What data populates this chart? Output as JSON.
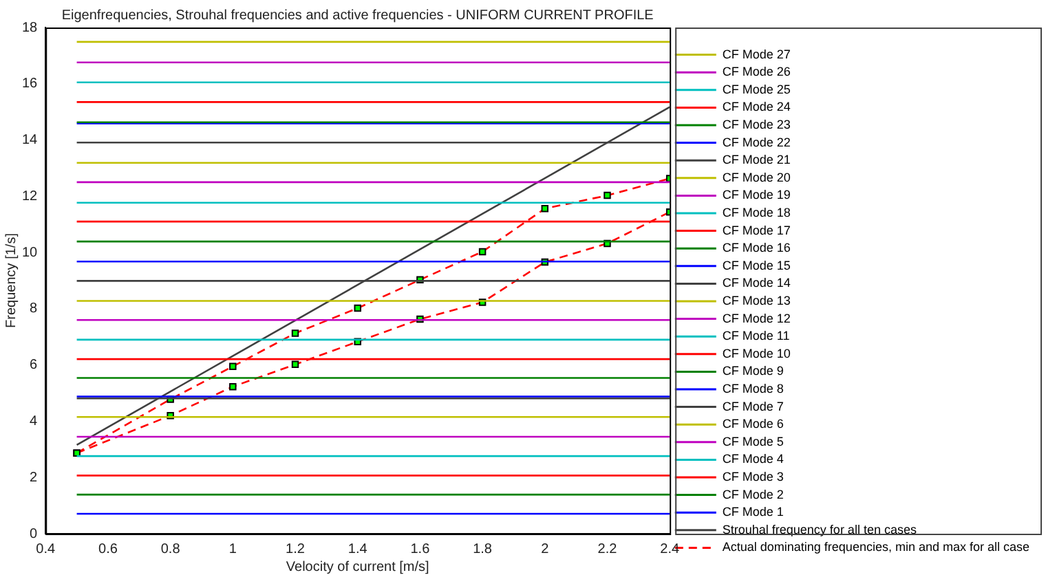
{
  "chart_data": {
    "type": "line",
    "title": "Eigenfrequencies, Strouhal frequencies and active frequencies - UNIFORM CURRENT PROFILE",
    "xlabel": "Velocity of current [m/s]",
    "ylabel": "Frequency [1/s]",
    "xlim": [
      0.4,
      2.4
    ],
    "ylim": [
      0,
      18
    ],
    "xticks": [
      0.4,
      0.6,
      0.8,
      1,
      1.2,
      1.4,
      1.6,
      1.8,
      2,
      2.2,
      2.4
    ],
    "yticks": [
      0,
      2,
      4,
      6,
      8,
      10,
      12,
      14,
      16,
      18
    ],
    "legend": "right",
    "grid": false,
    "marker": "none",
    "line_style": "solid",
    "series": [
      {
        "name": "CF Mode 27",
        "color": "#bfbf00",
        "x": [
          0.5,
          2.4
        ],
        "values": [
          17.49,
          17.49
        ]
      },
      {
        "name": "CF Mode 26",
        "color": "#bf00bf",
        "x": [
          0.5,
          2.4
        ],
        "values": [
          16.76,
          16.76
        ]
      },
      {
        "name": "CF Mode 25",
        "color": "#00bfbf",
        "x": [
          0.5,
          2.4
        ],
        "values": [
          16.05,
          16.05
        ]
      },
      {
        "name": "CF Mode 24",
        "color": "#ff0000",
        "x": [
          0.5,
          2.4
        ],
        "values": [
          15.35,
          15.35
        ]
      },
      {
        "name": "CF Mode 23",
        "color": "#008000",
        "x": [
          0.5,
          2.4
        ],
        "values": [
          14.63,
          14.63
        ]
      },
      {
        "name": "CF Mode 22",
        "color": "#0000ff",
        "x": [
          0.5,
          2.4
        ],
        "values": [
          14.59,
          14.59
        ]
      },
      {
        "name": "CF Mode 21",
        "color": "#404040",
        "x": [
          0.5,
          2.4
        ],
        "values": [
          13.91,
          13.91
        ]
      },
      {
        "name": "CF Mode 20",
        "color": "#bfbf00",
        "x": [
          0.5,
          2.4
        ],
        "values": [
          13.19,
          13.19
        ]
      },
      {
        "name": "CF Mode 19",
        "color": "#bf00bf",
        "x": [
          0.5,
          2.4
        ],
        "values": [
          12.5,
          12.5
        ]
      },
      {
        "name": "CF Mode 18",
        "color": "#00bfbf",
        "x": [
          0.5,
          2.4
        ],
        "values": [
          11.77,
          11.77
        ]
      },
      {
        "name": "CF Mode 17",
        "color": "#ff0000",
        "x": [
          0.5,
          2.4
        ],
        "values": [
          11.1,
          11.1
        ]
      },
      {
        "name": "CF Mode 16",
        "color": "#008000",
        "x": [
          0.5,
          2.4
        ],
        "values": [
          10.39,
          10.39
        ]
      },
      {
        "name": "CF Mode 15",
        "color": "#0000ff",
        "x": [
          0.5,
          2.4
        ],
        "values": [
          9.68,
          9.68
        ]
      },
      {
        "name": "CF Mode 14",
        "color": "#404040",
        "x": [
          0.5,
          2.4
        ],
        "values": [
          8.99,
          8.99
        ]
      },
      {
        "name": "CF Mode 13",
        "color": "#bfbf00",
        "x": [
          0.5,
          2.4
        ],
        "values": [
          8.28,
          8.28
        ]
      },
      {
        "name": "CF Mode 12",
        "color": "#bf00bf",
        "x": [
          0.5,
          2.4
        ],
        "values": [
          7.6,
          7.6
        ]
      },
      {
        "name": "CF Mode 11",
        "color": "#00bfbf",
        "x": [
          0.5,
          2.4
        ],
        "values": [
          6.9,
          6.9
        ]
      },
      {
        "name": "CF Mode 10",
        "color": "#ff0000",
        "x": [
          0.5,
          2.4
        ],
        "values": [
          6.21,
          6.21
        ]
      },
      {
        "name": "CF Mode 9",
        "color": "#008000",
        "x": [
          0.5,
          2.4
        ],
        "values": [
          5.54,
          5.54
        ]
      },
      {
        "name": "CF Mode 8",
        "color": "#0000ff",
        "x": [
          0.5,
          2.4
        ],
        "values": [
          4.88,
          4.88
        ]
      },
      {
        "name": "CF Mode 7",
        "color": "#404040",
        "x": [
          0.5,
          2.4
        ],
        "values": [
          4.81,
          4.81
        ]
      },
      {
        "name": "CF Mode 6",
        "color": "#bfbf00",
        "x": [
          0.5,
          2.4
        ],
        "values": [
          4.15,
          4.15
        ]
      },
      {
        "name": "CF Mode 5",
        "color": "#bf00bf",
        "x": [
          0.5,
          2.4
        ],
        "values": [
          3.45,
          3.45
        ]
      },
      {
        "name": "CF Mode 4",
        "color": "#00bfbf",
        "x": [
          0.5,
          2.4
        ],
        "values": [
          2.76,
          2.76
        ]
      },
      {
        "name": "CF Mode 3",
        "color": "#ff0000",
        "x": [
          0.5,
          2.4
        ],
        "values": [
          2.07,
          2.07
        ]
      },
      {
        "name": "CF Mode 2",
        "color": "#008000",
        "x": [
          0.5,
          2.4
        ],
        "values": [
          1.39,
          1.39
        ]
      },
      {
        "name": "CF Mode 1",
        "color": "#0000ff",
        "x": [
          0.5,
          2.4
        ],
        "values": [
          0.71,
          0.71
        ]
      },
      {
        "name": "Strouhal frequency for all ten cases",
        "color": "#404040",
        "x": [
          0.5,
          2.4
        ],
        "values": [
          3.16,
          15.17
        ]
      },
      {
        "name": "Actual dominating frequencies, min and max for all case",
        "color": "#ff0000",
        "marker": "square",
        "line_style": "dashed",
        "x": [
          0.5,
          0.8,
          1,
          1.2,
          1.4,
          1.6,
          1.8,
          2,
          2.2,
          2.4
        ],
        "values": [
          2.87,
          4.78,
          5.95,
          7.13,
          8.02,
          9.03,
          10.03,
          11.56,
          12.03,
          12.63
        ]
      },
      {
        "color": "#ff0000",
        "marker": "square",
        "line_style": "dashed",
        "x": [
          0.5,
          0.8,
          1,
          1.2,
          1.4,
          1.6,
          1.8,
          2,
          2.2,
          2.4
        ],
        "values": [
          2.87,
          4.2,
          5.23,
          6.02,
          6.83,
          7.63,
          8.23,
          9.66,
          10.32,
          11.44
        ]
      }
    ]
  }
}
